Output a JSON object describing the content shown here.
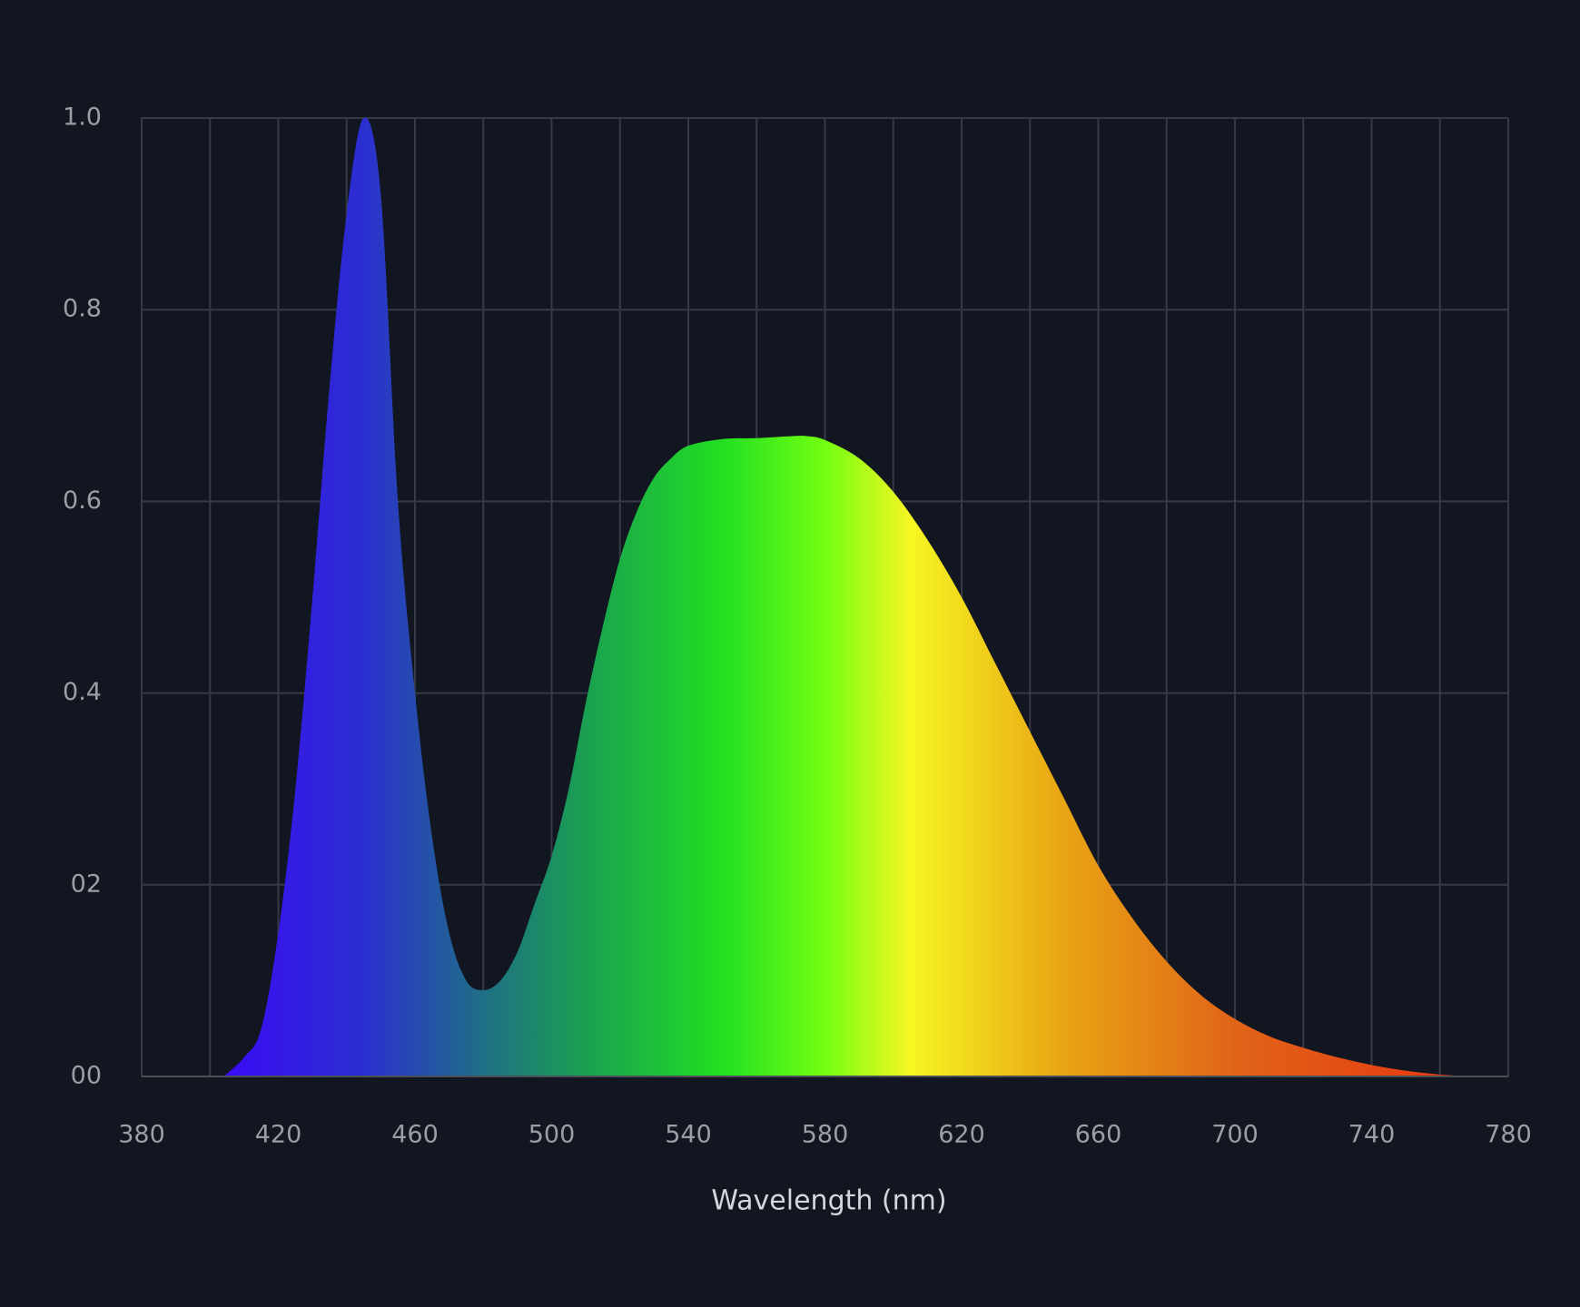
{
  "chart_data": {
    "type": "area",
    "x_label": "Wavelength (nm)",
    "x": [
      404,
      410,
      415,
      420,
      425,
      430,
      435,
      440,
      445,
      450,
      455,
      460,
      465,
      470,
      475,
      480,
      485,
      490,
      495,
      500,
      505,
      510,
      515,
      520,
      525,
      530,
      535,
      540,
      550,
      560,
      570,
      575,
      580,
      590,
      600,
      610,
      620,
      630,
      640,
      650,
      660,
      670,
      680,
      690,
      700,
      710,
      720,
      730,
      740,
      750,
      760,
      770
    ],
    "values": [
      0,
      0.02,
      0.05,
      0.15,
      0.3,
      0.5,
      0.72,
      0.9,
      1.0,
      0.92,
      0.6,
      0.4,
      0.25,
      0.15,
      0.1,
      0.09,
      0.1,
      0.13,
      0.18,
      0.23,
      0.3,
      0.39,
      0.47,
      0.54,
      0.59,
      0.625,
      0.645,
      0.658,
      0.665,
      0.666,
      0.668,
      0.668,
      0.664,
      0.645,
      0.61,
      0.56,
      0.5,
      0.43,
      0.36,
      0.29,
      0.22,
      0.165,
      0.12,
      0.085,
      0.06,
      0.042,
      0.03,
      0.02,
      0.012,
      0.006,
      0.002,
      0
    ],
    "color_stops": [
      {
        "x": 405,
        "color": "#3a0cf5"
      },
      {
        "x": 445,
        "color": "#2b2fd0"
      },
      {
        "x": 480,
        "color": "#1f6f86"
      },
      {
        "x": 510,
        "color": "#1aa050"
      },
      {
        "x": 550,
        "color": "#22e022"
      },
      {
        "x": 580,
        "color": "#72ff12"
      },
      {
        "x": 605,
        "color": "#f6f622"
      },
      {
        "x": 650,
        "color": "#e9a414"
      },
      {
        "x": 700,
        "color": "#e06418"
      },
      {
        "x": 770,
        "color": "#e83410"
      }
    ],
    "xlim": [
      380,
      780
    ],
    "xticks": [
      380,
      420,
      460,
      500,
      540,
      580,
      620,
      660,
      700,
      740,
      780
    ],
    "x_grid": [
      380,
      400,
      420,
      440,
      460,
      480,
      500,
      520,
      540,
      560,
      580,
      600,
      620,
      640,
      660,
      680,
      700,
      720,
      740,
      760,
      780
    ],
    "ylim": [
      0,
      1
    ],
    "yticks": [
      {
        "value": 0,
        "label": "00"
      },
      {
        "value": 0.2,
        "label": "02"
      },
      0.4,
      0.6,
      0.8,
      {
        "value": 1,
        "label": "1.0"
      }
    ],
    "grid": true
  }
}
